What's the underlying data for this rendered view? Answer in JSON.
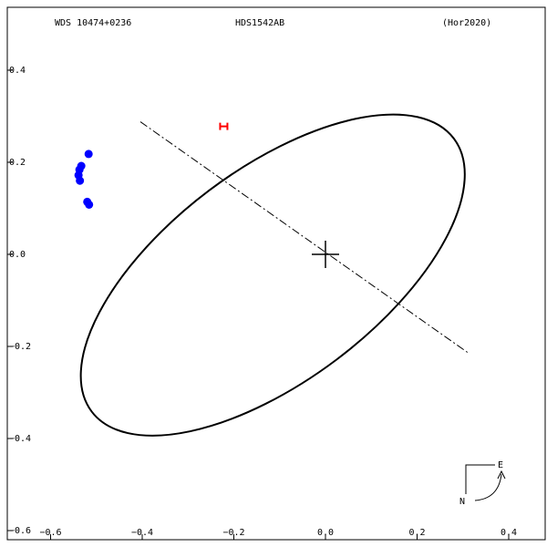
{
  "header": {
    "left": "WDS 10474+0236",
    "center": "HDS1542AB",
    "right": "(Hor2020)"
  },
  "compass": {
    "east_label": "E",
    "north_label": "N"
  },
  "colors": {
    "orbit": "#000000",
    "observations": "#0000ff",
    "marker": "#ff0000",
    "node_line": "#000000"
  },
  "chart_data": {
    "type": "scatter",
    "xlim": [
      -0.6,
      0.4
    ],
    "ylim": [
      -0.6,
      0.4
    ],
    "grid": false,
    "x_ticks": [
      {
        "value": -0.6,
        "label": "−0.6"
      },
      {
        "value": -0.4,
        "label": "−0.4"
      },
      {
        "value": -0.2,
        "label": "−0.2"
      },
      {
        "value": 0.0,
        "label": "0.0"
      },
      {
        "value": 0.2,
        "label": "0.2"
      },
      {
        "value": 0.4,
        "label": "0.4"
      }
    ],
    "y_ticks": [
      {
        "value": 0.4,
        "label": "0.4"
      },
      {
        "value": 0.2,
        "label": "0.2"
      },
      {
        "value": 0.0,
        "label": "0.0"
      },
      {
        "value": -0.2,
        "label": "−0.2"
      },
      {
        "value": -0.4,
        "label": "−0.4"
      },
      {
        "value": -0.6,
        "label": "−0.6"
      }
    ],
    "orbit_ellipse": {
      "center": [
        -0.115,
        -0.045
      ],
      "semi_major": 0.495,
      "semi_minor": 0.23,
      "rotation_deg": -37
    },
    "node_line": {
      "from": [
        -0.404,
        0.288
      ],
      "to": [
        0.313,
        -0.215
      ]
    },
    "primary_star": [
      0.0,
      0.0
    ],
    "observations": [
      {
        "x": -0.517,
        "y": 0.218
      },
      {
        "x": -0.533,
        "y": 0.192
      },
      {
        "x": -0.537,
        "y": 0.184
      },
      {
        "x": -0.539,
        "y": 0.172
      },
      {
        "x": -0.536,
        "y": 0.16
      },
      {
        "x": -0.52,
        "y": 0.114
      },
      {
        "x": -0.516,
        "y": 0.108
      }
    ],
    "predicted_position": {
      "x": -0.222,
      "y": 0.278
    }
  }
}
